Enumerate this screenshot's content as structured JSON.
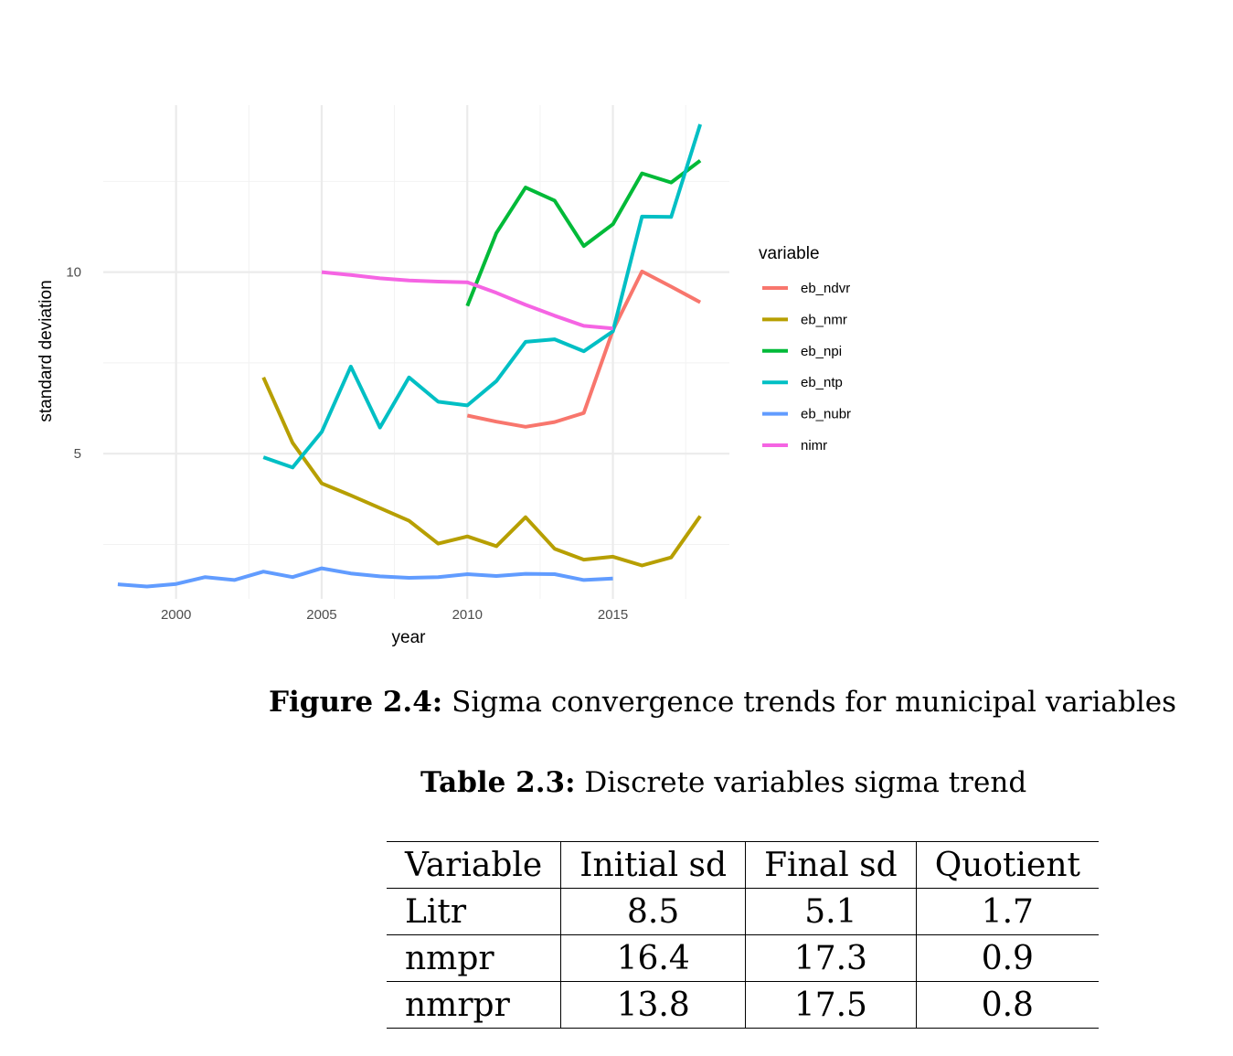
{
  "chart_data": {
    "type": "line",
    "title": "",
    "xlabel": "year",
    "ylabel": "standard deviation",
    "xlim": [
      1997.5,
      2019
    ],
    "ylim": [
      1.0,
      14.6
    ],
    "x_ticks": [
      2000,
      2005,
      2010,
      2015
    ],
    "y_ticks": [
      5,
      10
    ],
    "grid": true,
    "legend_title": "variable",
    "legend_position": "right",
    "series": [
      {
        "name": "eb_ndvr",
        "color": "#F8766D",
        "x": [
          2010,
          2011,
          2012,
          2013,
          2014,
          2015,
          2016,
          2017,
          2018
        ],
        "y": [
          6.05,
          5.88,
          5.74,
          5.87,
          6.12,
          8.4,
          10.02,
          9.6,
          9.17
        ]
      },
      {
        "name": "eb_nmr",
        "color": "#B79F00",
        "x": [
          2003,
          2004,
          2005,
          2006,
          2007,
          2008,
          2009,
          2010,
          2011,
          2012,
          2013,
          2014,
          2015,
          2016,
          2017,
          2018
        ],
        "y": [
          7.1,
          5.3,
          4.18,
          3.85,
          3.5,
          3.15,
          2.52,
          2.72,
          2.45,
          3.25,
          2.38,
          2.08,
          2.16,
          1.92,
          2.14,
          3.28
        ]
      },
      {
        "name": "eb_npi",
        "color": "#00BA38",
        "x": [
          2010,
          2011,
          2012,
          2013,
          2014,
          2015,
          2016,
          2017,
          2018
        ],
        "y": [
          9.07,
          11.08,
          12.33,
          11.97,
          10.72,
          11.32,
          12.72,
          12.47,
          13.07
        ]
      },
      {
        "name": "eb_ntp",
        "color": "#00BFC4",
        "x": [
          2003,
          2004,
          2005,
          2006,
          2007,
          2008,
          2009,
          2010,
          2011,
          2012,
          2013,
          2014,
          2015,
          2016,
          2017,
          2018
        ],
        "y": [
          4.9,
          4.62,
          5.6,
          7.4,
          5.72,
          7.1,
          6.43,
          6.33,
          7.0,
          8.08,
          8.15,
          7.82,
          8.37,
          11.53,
          11.52,
          14.07
        ]
      },
      {
        "name": "eb_nubr",
        "color": "#619CFF",
        "x": [
          1998,
          1999,
          2000,
          2001,
          2002,
          2003,
          2004,
          2005,
          2006,
          2007,
          2008,
          2009,
          2010,
          2011,
          2012,
          2013,
          2014,
          2015
        ],
        "y": [
          1.4,
          1.34,
          1.41,
          1.6,
          1.52,
          1.75,
          1.6,
          1.84,
          1.7,
          1.62,
          1.58,
          1.6,
          1.68,
          1.63,
          1.69,
          1.68,
          1.52,
          1.56
        ]
      },
      {
        "name": "nimr",
        "color": "#F564E3",
        "x": [
          2005,
          2006,
          2007,
          2008,
          2009,
          2010,
          2011,
          2012,
          2013,
          2014,
          2015
        ],
        "y": [
          10.0,
          9.92,
          9.83,
          9.77,
          9.74,
          9.72,
          9.43,
          9.1,
          8.8,
          8.52,
          8.45
        ]
      }
    ]
  },
  "figure_caption": {
    "label": "Figure 2.4:",
    "text": "Sigma convergence trends for municipal variables"
  },
  "table": {
    "caption_label": "Table 2.3:",
    "caption_text": "Discrete variables sigma trend",
    "headers": [
      "Variable",
      "Initial sd",
      "Final sd",
      "Quotient"
    ],
    "rows": [
      [
        "Litr",
        "8.5",
        "5.1",
        "1.7"
      ],
      [
        "nmpr",
        "16.4",
        "17.3",
        "0.9"
      ],
      [
        "nmrpr",
        "13.8",
        "17.5",
        "0.8"
      ]
    ]
  }
}
